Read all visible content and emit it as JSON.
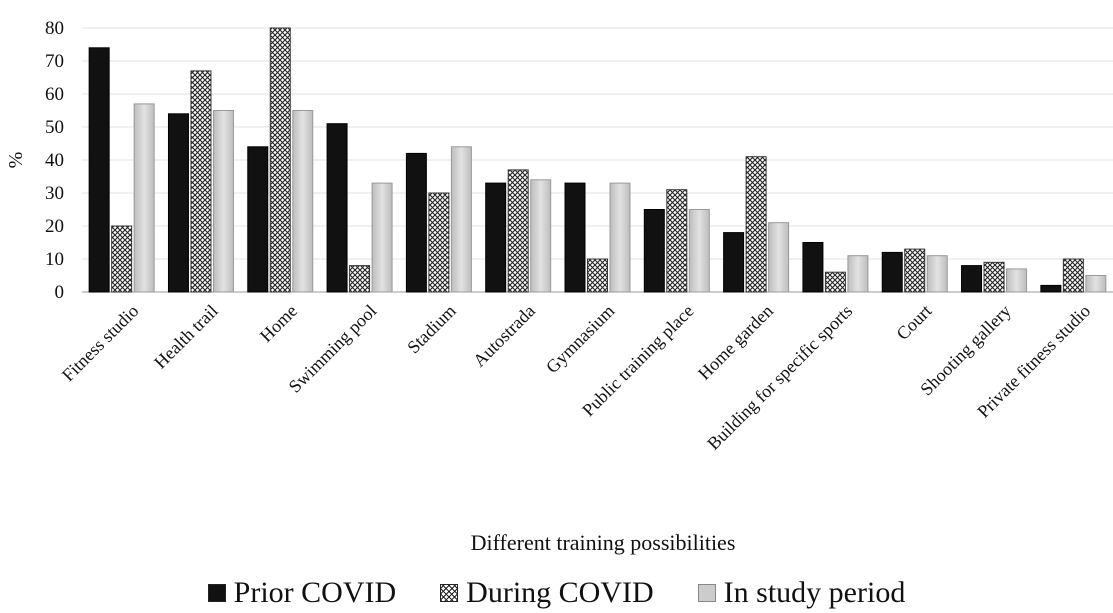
{
  "chart_data": {
    "type": "bar",
    "title": "",
    "xlabel": "Different training possibilities",
    "ylabel": "%",
    "ylim": [
      0,
      80
    ],
    "yticks": [
      0,
      10,
      20,
      30,
      40,
      50,
      60,
      70,
      80
    ],
    "grid": "horizontal",
    "legend_position": "bottom",
    "categories": [
      "Fitness studio",
      "Health trail",
      "Home",
      "Swimming pool",
      "Stadium",
      "Autostrada",
      "Gymnasium",
      "Public training place",
      "Home garden",
      "Building for specific sports",
      "Court",
      "Shooting gallery",
      "Private fitness studio"
    ],
    "series": [
      {
        "name": "Prior COVID",
        "color": "#111111",
        "pattern": "solid",
        "values": [
          74,
          54,
          44,
          51,
          42,
          33,
          33,
          25,
          18,
          15,
          12,
          8,
          2
        ]
      },
      {
        "name": "During COVID",
        "color": "#ffffff",
        "pattern": "crosshatch",
        "values": [
          20,
          67,
          80,
          8,
          30,
          37,
          10,
          31,
          41,
          6,
          13,
          9,
          10
        ]
      },
      {
        "name": "In study period",
        "color": "#cccccc",
        "pattern": "light-gray",
        "values": [
          57,
          55,
          55,
          33,
          44,
          34,
          33,
          25,
          21,
          11,
          11,
          7,
          5
        ]
      }
    ]
  }
}
